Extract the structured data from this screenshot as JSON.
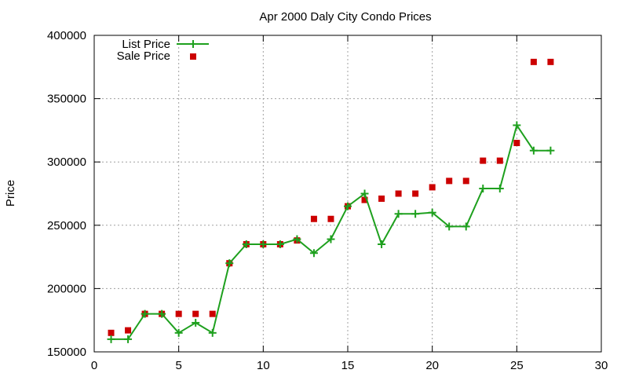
{
  "chart_data": {
    "type": "line",
    "title": "Apr 2000 Daly City Condo Prices",
    "xlabel": "",
    "ylabel": "Price",
    "xlim": [
      0,
      30
    ],
    "ylim": [
      150000,
      400000
    ],
    "xticks": [
      0,
      5,
      10,
      15,
      20,
      25,
      30
    ],
    "yticks": [
      150000,
      200000,
      250000,
      300000,
      350000,
      400000
    ],
    "grid": true,
    "legend_position": "top-left",
    "series": [
      {
        "name": "List Price",
        "style": "linespoints",
        "color": "#1ea01e",
        "x": [
          1,
          2,
          3,
          4,
          5,
          6,
          7,
          8,
          9,
          10,
          11,
          12,
          13,
          14,
          15,
          16,
          17,
          18,
          19,
          20,
          21,
          22,
          23,
          24,
          25,
          26,
          27
        ],
        "values": [
          160000,
          160000,
          180000,
          180000,
          165000,
          173000,
          165000,
          220000,
          235000,
          235000,
          235000,
          239000,
          228000,
          239000,
          265000,
          275000,
          235000,
          259000,
          259000,
          260000,
          249000,
          249000,
          279000,
          279000,
          329000,
          309000,
          309000
        ]
      },
      {
        "name": "Sale Price",
        "style": "points",
        "color": "#cc0000",
        "x": [
          1,
          2,
          3,
          4,
          5,
          6,
          7,
          8,
          9,
          10,
          11,
          12,
          13,
          14,
          15,
          16,
          17,
          18,
          19,
          20,
          21,
          22,
          23,
          24,
          25,
          26,
          27
        ],
        "values": [
          165000,
          167000,
          180000,
          180000,
          180000,
          180000,
          180000,
          220000,
          235000,
          235000,
          235000,
          238000,
          255000,
          255000,
          265000,
          270000,
          271000,
          275000,
          275000,
          280000,
          285000,
          285000,
          301000,
          301000,
          315000,
          379000,
          379000
        ]
      }
    ]
  }
}
